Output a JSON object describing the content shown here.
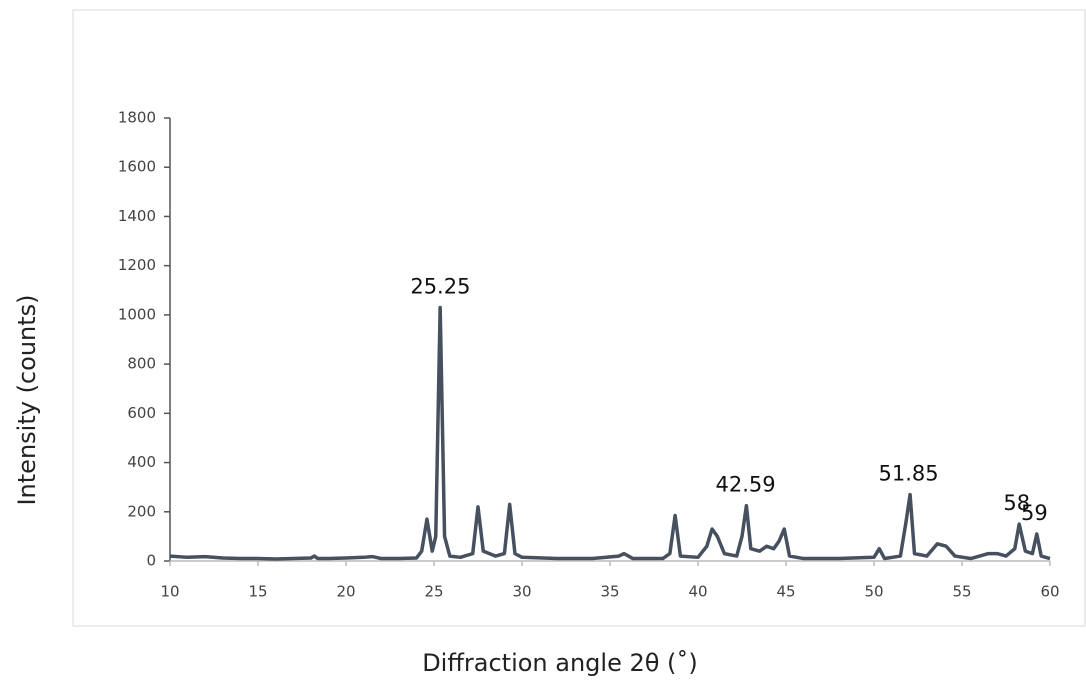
{
  "chart_data": {
    "type": "line",
    "x_label": "Diffraction angle 2θ (˚)",
    "y_label": "Intensity (counts)",
    "annotations": [
      "25.25",
      "42.59",
      "51.85",
      "58",
      "59"
    ],
    "color": "#46505f",
    "xlim": [
      10,
      60
    ],
    "xticks": [
      10,
      15,
      20,
      25,
      30,
      35,
      40,
      45,
      50,
      55,
      60
    ],
    "ylim": [
      0,
      1800
    ],
    "yticks": [
      0,
      200,
      400,
      600,
      800,
      1000,
      1200,
      1400,
      1600,
      1800
    ],
    "x": [
      10,
      11,
      12,
      13,
      14,
      15,
      16,
      17,
      18,
      18.2,
      18.4,
      19,
      20,
      21,
      21.5,
      22,
      23,
      24,
      24.3,
      24.6,
      24.9,
      25.1,
      25.35,
      25.6,
      25.9,
      26.5,
      27.2,
      27.5,
      27.8,
      28.5,
      29,
      29.3,
      29.6,
      30,
      32,
      34,
      35.5,
      35.8,
      36.3,
      38,
      38.4,
      38.7,
      39,
      40,
      40.5,
      40.8,
      41.1,
      41.5,
      42.2,
      42.5,
      42.75,
      43,
      43.5,
      43.9,
      44.3,
      44.6,
      44.9,
      45.2,
      46,
      47.5,
      48,
      50,
      50.3,
      50.6,
      51.5,
      51.8,
      52.05,
      52.3,
      53,
      53.6,
      54.1,
      54.6,
      55.5,
      56.5,
      57,
      57.5,
      58,
      58.25,
      58.6,
      59,
      59.25,
      59.5,
      60
    ],
    "series": [
      {
        "name": "Intensity",
        "values": [
          20,
          15,
          18,
          12,
          10,
          10,
          8,
          10,
          12,
          20,
          10,
          10,
          12,
          15,
          18,
          10,
          10,
          12,
          40,
          170,
          40,
          100,
          1030,
          100,
          20,
          15,
          30,
          220,
          40,
          20,
          30,
          230,
          30,
          15,
          10,
          10,
          20,
          30,
          10,
          10,
          30,
          185,
          20,
          15,
          60,
          130,
          100,
          30,
          20,
          100,
          225,
          50,
          40,
          60,
          50,
          80,
          130,
          20,
          10,
          10,
          10,
          15,
          50,
          10,
          20,
          150,
          270,
          30,
          20,
          70,
          60,
          20,
          10,
          30,
          30,
          20,
          50,
          150,
          40,
          30,
          110,
          20,
          10
        ]
      }
    ]
  }
}
